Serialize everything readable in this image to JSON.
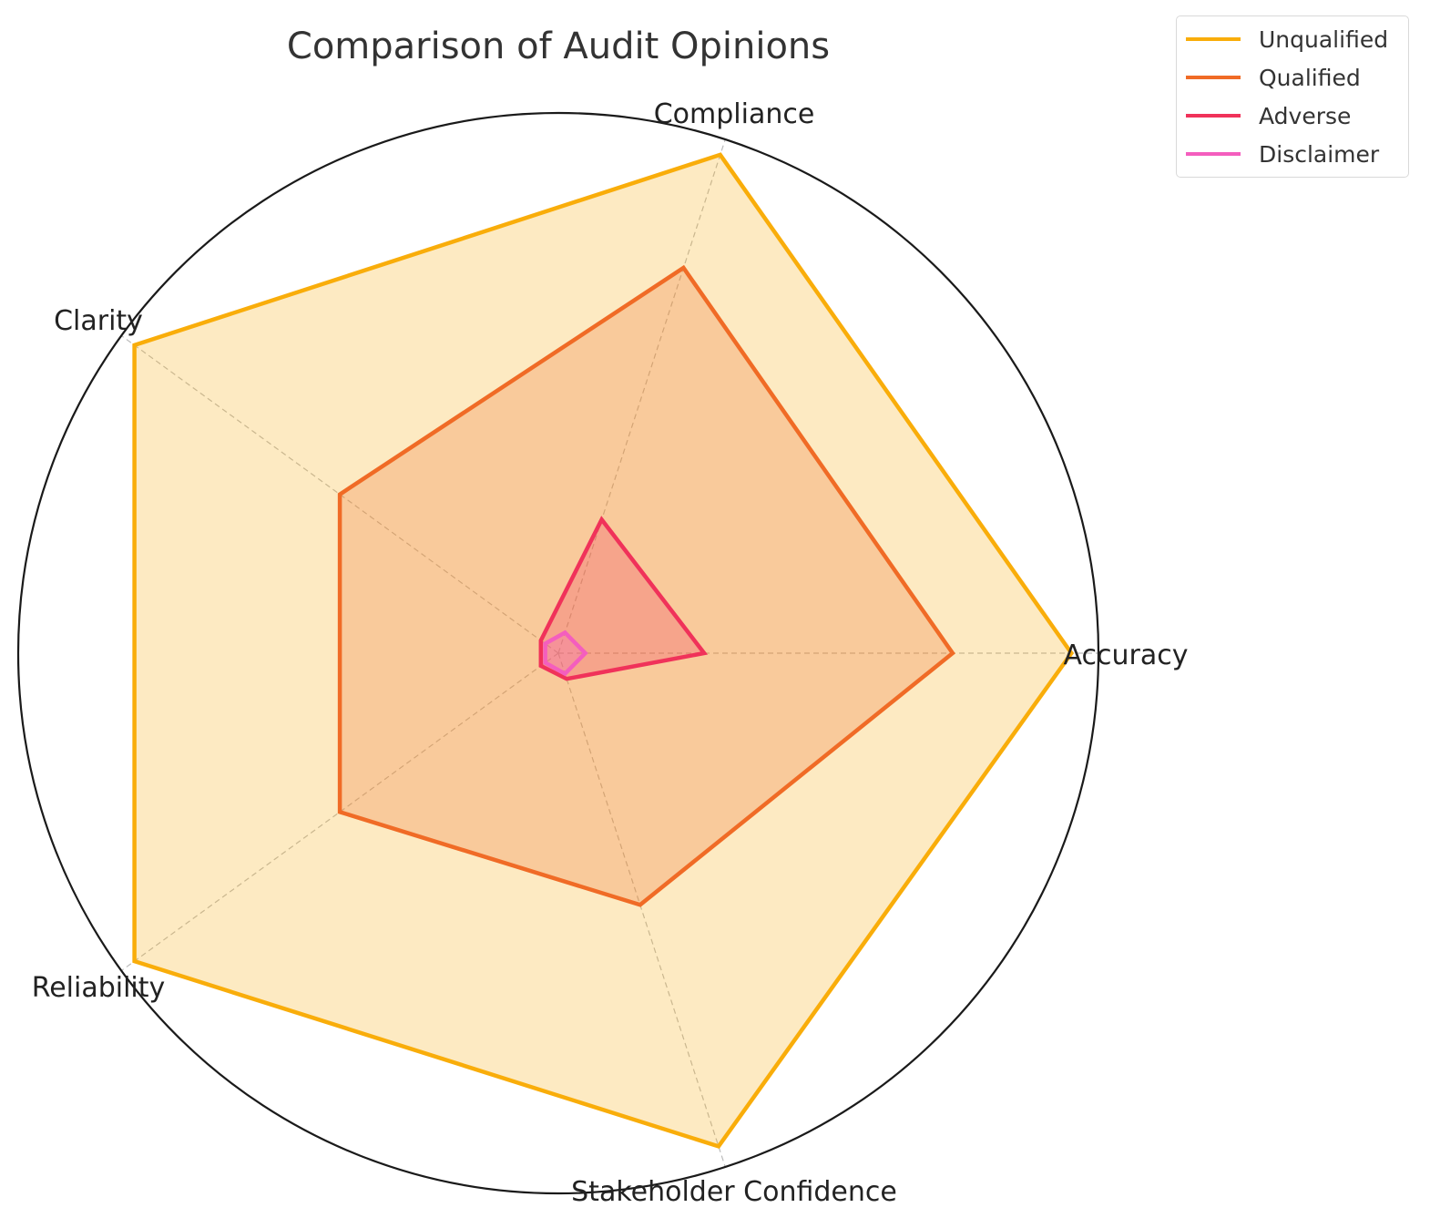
{
  "chart_data": {
    "type": "radar",
    "title": "Comparison of Audit Opinions",
    "axes": [
      "Accuracy",
      "Compliance",
      "Clarity",
      "Reliability",
      "Stakeholder Confidence"
    ],
    "rlim": [
      0,
      100
    ],
    "grid": true,
    "legend_position": "top-right",
    "series": [
      {
        "name": "Unqualified",
        "values": [
          95,
          97,
          97,
          97,
          96
        ],
        "color": "#f9ad0a"
      },
      {
        "name": "Qualified",
        "values": [
          73,
          75,
          50,
          50,
          49
        ],
        "color": "#f06b26"
      },
      {
        "name": "Adverse",
        "values": [
          27,
          26,
          4,
          4,
          5
        ],
        "color": "#f0325a"
      },
      {
        "name": "Disclaimer",
        "values": [
          5,
          4,
          3,
          3,
          4
        ],
        "color": "#f45ebe"
      }
    ]
  }
}
